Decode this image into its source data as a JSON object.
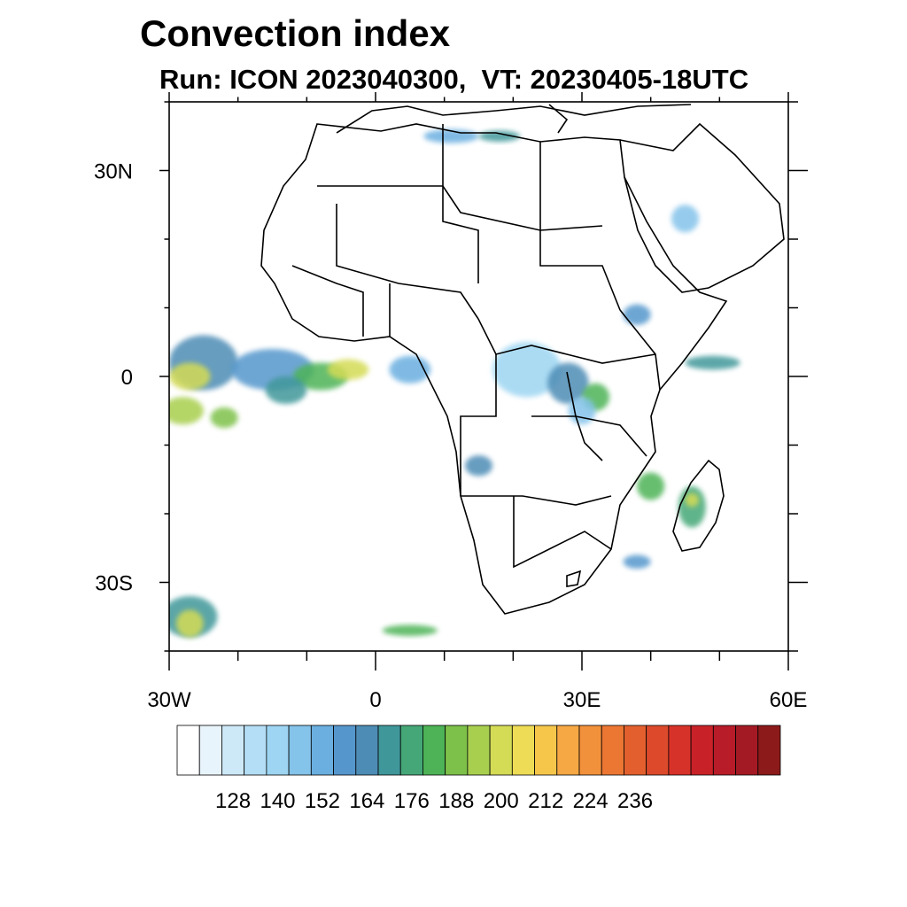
{
  "title": "Convection index",
  "subtitle": "Run: ICON 2023040300,  VT: 20230405-18UTC",
  "map": {
    "lon_range": [
      -30,
      60
    ],
    "lat_range": [
      -40,
      40
    ],
    "x_ticks": [
      {
        "lon": -30,
        "label": "30W"
      },
      {
        "lon": 0,
        "label": "0"
      },
      {
        "lon": 30,
        "label": "30E"
      },
      {
        "lon": 60,
        "label": "60E"
      }
    ],
    "y_ticks": [
      {
        "lat": 30,
        "label": "30N"
      },
      {
        "lat": 0,
        "label": "0"
      },
      {
        "lat": -30,
        "label": "30S"
      }
    ]
  },
  "colorbar": {
    "colors": [
      "#ffffff",
      "#e8f4fb",
      "#cde9f7",
      "#b3def5",
      "#9dd5f2",
      "#84c3ea",
      "#6aafe0",
      "#5597cc",
      "#4d8cb5",
      "#3f979a",
      "#45a777",
      "#4db356",
      "#7ec14a",
      "#a8cf4e",
      "#d4db55",
      "#eedc56",
      "#f6c64b",
      "#f5a844",
      "#f2913b",
      "#ec7733",
      "#e3602e",
      "#dc4a2b",
      "#d73229",
      "#c82228",
      "#b71c28",
      "#a41a24",
      "#8c1a1a"
    ],
    "labels": [
      "128",
      "140",
      "152",
      "164",
      "176",
      "188",
      "200",
      "212",
      "224",
      "236"
    ]
  },
  "fields": [
    {
      "lon": -25,
      "lat": 2,
      "rx": 5,
      "ry": 4,
      "level": 8
    },
    {
      "lon": -27,
      "lat": 0,
      "rx": 3,
      "ry": 2,
      "level": 14
    },
    {
      "lon": -28,
      "lat": -5,
      "rx": 3,
      "ry": 2,
      "level": 13
    },
    {
      "lon": -22,
      "lat": -6,
      "rx": 2,
      "ry": 1.5,
      "level": 12
    },
    {
      "lon": -15,
      "lat": 1,
      "rx": 6,
      "ry": 3,
      "level": 7
    },
    {
      "lon": -8,
      "lat": 0,
      "rx": 4,
      "ry": 2,
      "level": 11
    },
    {
      "lon": -4,
      "lat": 1,
      "rx": 3,
      "ry": 1.5,
      "level": 14
    },
    {
      "lon": -13,
      "lat": -2,
      "rx": 3,
      "ry": 2,
      "level": 9
    },
    {
      "lon": 5,
      "lat": 1,
      "rx": 3,
      "ry": 2,
      "level": 6
    },
    {
      "lon": -27,
      "lat": -35,
      "rx": 4,
      "ry": 3,
      "level": 9
    },
    {
      "lon": -27,
      "lat": -36,
      "rx": 2,
      "ry": 2,
      "level": 14
    },
    {
      "lon": 5,
      "lat": -37,
      "rx": 4,
      "ry": 0.8,
      "level": 11
    },
    {
      "lon": 11,
      "lat": 35,
      "rx": 4,
      "ry": 1,
      "level": 6
    },
    {
      "lon": 18,
      "lat": 35,
      "rx": 3,
      "ry": 0.8,
      "level": 9
    },
    {
      "lon": 22,
      "lat": 1,
      "rx": 5,
      "ry": 4,
      "level": 4
    },
    {
      "lon": 28,
      "lat": -1,
      "rx": 3,
      "ry": 3,
      "level": 8
    },
    {
      "lon": 32,
      "lat": -3,
      "rx": 2,
      "ry": 2,
      "level": 11
    },
    {
      "lon": 30,
      "lat": -5,
      "rx": 2,
      "ry": 2,
      "level": 5
    },
    {
      "lon": 38,
      "lat": 9,
      "rx": 2,
      "ry": 1.5,
      "level": 7
    },
    {
      "lon": 49,
      "lat": 2,
      "rx": 4,
      "ry": 1,
      "level": 9
    },
    {
      "lon": 40,
      "lat": -16,
      "rx": 2,
      "ry": 2,
      "level": 11
    },
    {
      "lon": 46,
      "lat": -19,
      "rx": 2,
      "ry": 3,
      "level": 10
    },
    {
      "lon": 46,
      "lat": -18,
      "rx": 1,
      "ry": 1,
      "level": 14
    },
    {
      "lon": 15,
      "lat": -13,
      "rx": 2,
      "ry": 1.5,
      "level": 8
    },
    {
      "lon": 45,
      "lat": 23,
      "rx": 2,
      "ry": 2,
      "level": 5
    },
    {
      "lon": 38,
      "lat": -27,
      "rx": 2,
      "ry": 1,
      "level": 7
    }
  ]
}
